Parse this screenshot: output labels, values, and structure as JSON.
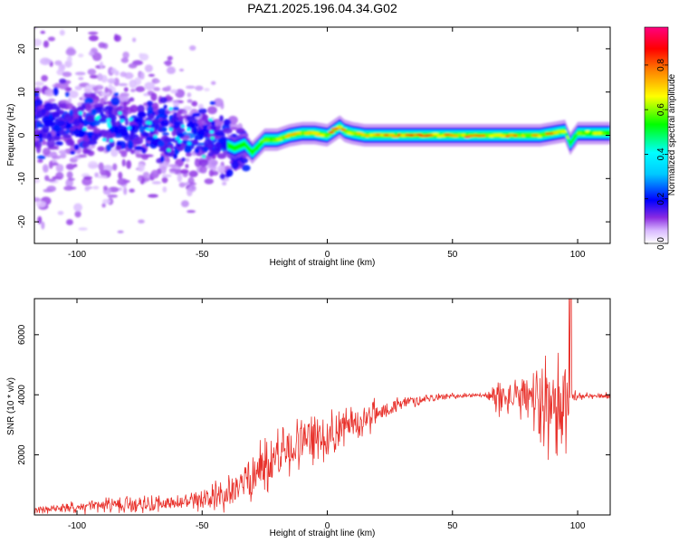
{
  "figure": {
    "title": "PAZ1.2025.196.04.34.G02"
  },
  "colorbar": {
    "label": "Normalized spectral amplitude",
    "ticks": [
      "0.0",
      "0.2",
      "0.4",
      "0.6",
      "0.8"
    ],
    "tick_values": [
      0.0,
      0.2,
      0.4,
      0.6,
      0.8
    ],
    "range": [
      0,
      0.97
    ],
    "colors": [
      "#ffffff",
      "#8a2be2",
      "#0000ff",
      "#00ffff",
      "#00ff00",
      "#ffff00",
      "#ff8000",
      "#ff0000",
      "#ff0080"
    ]
  },
  "chart_data": [
    {
      "type": "heatmap",
      "title": "PAZ1.2025.196.04.34.G02",
      "xlabel": "Height of straight line (km)",
      "ylabel": "Frequency (Hz)",
      "xlim": [
        -117,
        113
      ],
      "ylim": [
        -25,
        25
      ],
      "xticks": [
        -100,
        -50,
        0,
        50,
        100
      ],
      "yticks": [
        -20,
        -10,
        0,
        10,
        20
      ],
      "ridge": {
        "x": [
          -117,
          -100,
          -80,
          -60,
          -45,
          -37,
          -33,
          -30,
          -25,
          -20,
          -15,
          -10,
          -5,
          0,
          5,
          7,
          10,
          15,
          30,
          50,
          70,
          85,
          90,
          95,
          97,
          100,
          113
        ],
        "freq": [
          3,
          3,
          2,
          0,
          -1,
          -3,
          -2,
          -4,
          -1,
          -1,
          0,
          0.5,
          0.5,
          0,
          2,
          1,
          0.5,
          0,
          0,
          0,
          0,
          0,
          0.5,
          1,
          -2,
          0.5,
          0.5
        ],
        "amplitude": [
          0.15,
          0.2,
          0.22,
          0.25,
          0.3,
          0.4,
          0.45,
          0.5,
          0.55,
          0.65,
          0.7,
          0.75,
          0.75,
          0.8,
          0.85,
          0.8,
          0.8,
          0.75,
          0.85,
          0.8,
          0.8,
          0.75,
          0.85,
          0.8,
          0.5,
          0.7,
          0.6
        ]
      },
      "scatter_extent_hz": {
        "x": [
          -117,
          -60,
          -40,
          -30
        ],
        "spread": [
          22,
          14,
          8,
          0
        ]
      }
    },
    {
      "type": "line",
      "xlabel": "Height of straight line (km)",
      "ylabel": "SNR (10 * v/v)",
      "xlim": [
        -117,
        113
      ],
      "ylim": [
        0,
        7200
      ],
      "xticks": [
        -100,
        -50,
        0,
        50,
        100
      ],
      "yticks": [
        2000,
        4000,
        6000
      ],
      "series": [
        {
          "color": "#e8302a",
          "envelope_x": [
            -117,
            -100,
            -80,
            -60,
            -50,
            -40,
            -30,
            -20,
            -10,
            0,
            10,
            20,
            30,
            40,
            50,
            60,
            65,
            68,
            72,
            80,
            85,
            90,
            95,
            98,
            100,
            105,
            113
          ],
          "envelope_baseline": [
            150,
            250,
            350,
            400,
            450,
            700,
            1300,
            2000,
            2400,
            2700,
            3000,
            3400,
            3700,
            3900,
            3950,
            4000,
            3950,
            3900,
            3900,
            3850,
            3800,
            3700,
            3700,
            3950,
            3950,
            3950,
            3950
          ],
          "envelope_amplitude": [
            120,
            200,
            300,
            300,
            350,
            600,
            900,
            1100,
            900,
            800,
            700,
            450,
            250,
            150,
            100,
            80,
            150,
            800,
            500,
            900,
            1500,
            2000,
            1900,
            200,
            150,
            120,
            120
          ]
        }
      ]
    }
  ]
}
